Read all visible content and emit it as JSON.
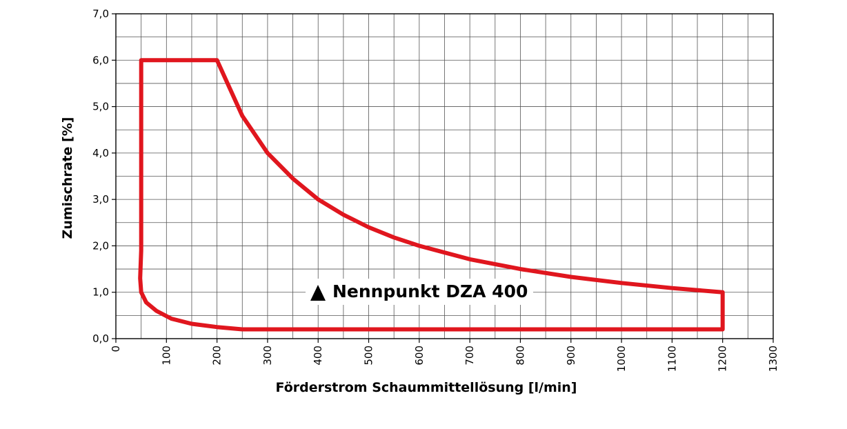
{
  "chart_data": {
    "type": "line",
    "title": "",
    "xlabel": "Förderstrom Schaummittellösung [l/min]",
    "ylabel": "Zumischrate [%]",
    "xlim": [
      0,
      1300
    ],
    "ylim": [
      0,
      7
    ],
    "x_ticks": [
      0,
      100,
      200,
      300,
      400,
      500,
      600,
      700,
      800,
      900,
      1000,
      1100,
      1200,
      1300
    ],
    "x_tick_labels": [
      "0",
      "100",
      "200",
      "300",
      "400",
      "500",
      "600",
      "700",
      "800",
      "900",
      "1000",
      "1100",
      "1200",
      "1300"
    ],
    "y_ticks": [
      0,
      1,
      2,
      3,
      4,
      5,
      6,
      7
    ],
    "y_tick_labels": [
      "0,0",
      "1,0",
      "2,0",
      "3,0",
      "4,0",
      "5,0",
      "6,0",
      "7,0"
    ],
    "x_minor_step": 50,
    "y_minor_step": 0.5,
    "grid": true,
    "legend": "none",
    "series": [
      {
        "color": "#e0161e",
        "closed": true,
        "points": [
          [
            50,
            6.0
          ],
          [
            200,
            6.0
          ],
          [
            250,
            4.8
          ],
          [
            300,
            4.0
          ],
          [
            350,
            3.45
          ],
          [
            400,
            3.0
          ],
          [
            450,
            2.67
          ],
          [
            500,
            2.4
          ],
          [
            550,
            2.18
          ],
          [
            600,
            2.0
          ],
          [
            700,
            1.71
          ],
          [
            800,
            1.5
          ],
          [
            900,
            1.33
          ],
          [
            1000,
            1.2
          ],
          [
            1100,
            1.09
          ],
          [
            1200,
            1.0
          ],
          [
            1200,
            0.2
          ],
          [
            250,
            0.2
          ],
          [
            200,
            0.25
          ],
          [
            150,
            0.32
          ],
          [
            110,
            0.43
          ],
          [
            80,
            0.6
          ],
          [
            60,
            0.78
          ],
          [
            50,
            1.0
          ],
          [
            48,
            1.3
          ],
          [
            50,
            1.9
          ],
          [
            50,
            6.0
          ]
        ]
      }
    ],
    "annotations": [
      {
        "text": "Nennpunkt DZA 400",
        "marker": "triangle",
        "x": 400,
        "y": 1.0
      }
    ]
  }
}
